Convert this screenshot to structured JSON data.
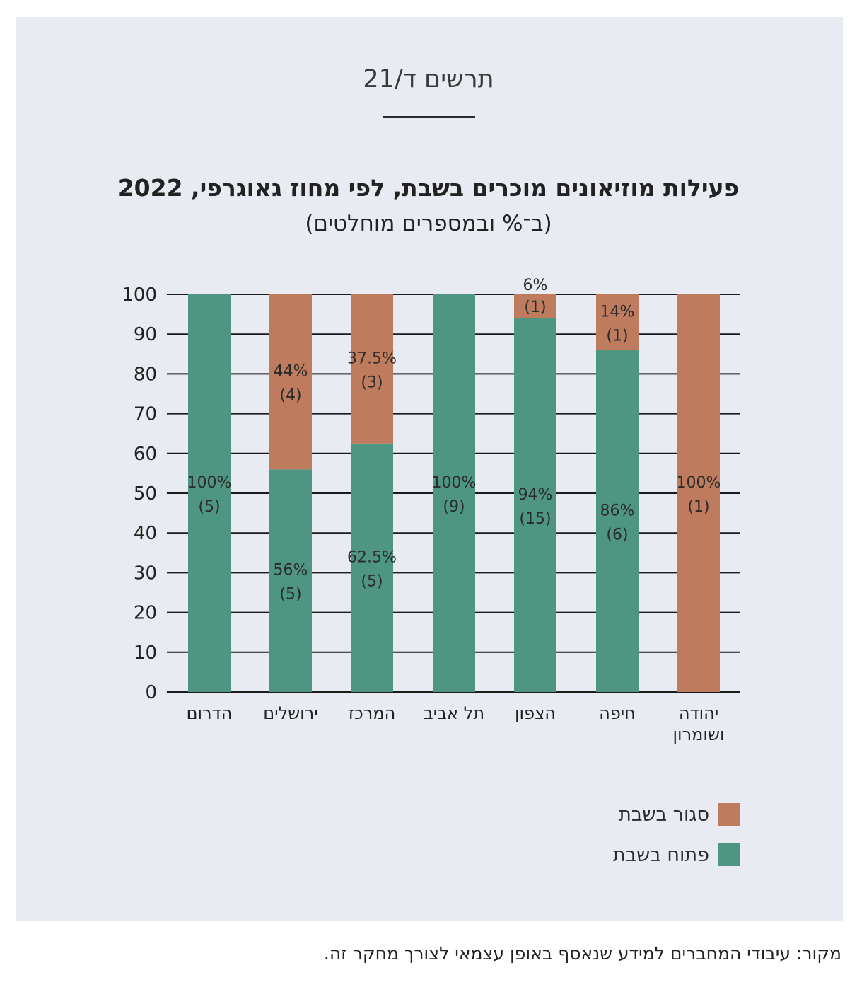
{
  "figure_number": "תרשים ד/21",
  "title": "פעילות מוזיאונים מוכרים בשבת, לפי מחוז גאוגרפי, 2022",
  "subtitle": "(ב־% ובמספרים מוחלטים)",
  "source": "מקור: עיבודי המחברים למידע שנאסף באופן עצמאי לצורך מחקר זה.",
  "colors": {
    "open": "#4e9582",
    "closed": "#bf7b5e",
    "panel_bg": "#e8ebf1",
    "grid": "#1a1a1a"
  },
  "legend": [
    {
      "key": "closed",
      "label": "סגור בשבת"
    },
    {
      "key": "open",
      "label": "פתוח בשבת"
    }
  ],
  "chart_data": {
    "type": "bar",
    "stacked": true,
    "ylim": [
      0,
      100
    ],
    "yticks": [
      0,
      10,
      20,
      30,
      40,
      50,
      60,
      70,
      80,
      90,
      100
    ],
    "grid": true,
    "legend_position": "bottom-right",
    "categories": [
      [
        "הדרום"
      ],
      [
        "ירושלים"
      ],
      [
        "המרכז"
      ],
      [
        "תל אביב"
      ],
      [
        "הצפון"
      ],
      [
        "חיפה"
      ],
      [
        "יהודה",
        "ושומרון"
      ]
    ],
    "series": [
      {
        "name": "פתוח בשבת",
        "key": "open",
        "values": [
          100,
          56,
          62.5,
          100,
          94,
          86,
          0
        ],
        "labels": [
          "100%",
          "56%",
          "62.5%",
          "100%",
          "94%",
          "86%",
          ""
        ],
        "counts": [
          "(5)",
          "(5)",
          "(5)",
          "(9)",
          "(15)",
          "(6)",
          ""
        ]
      },
      {
        "name": "סגור בשבת",
        "key": "closed",
        "values": [
          0,
          44,
          37.5,
          0,
          6,
          14,
          100
        ],
        "labels": [
          "",
          "44%",
          "37.5%",
          "",
          "6%",
          "14%",
          "100%"
        ],
        "counts": [
          "",
          "(4)",
          "(3)",
          "",
          "(1)",
          "(1)",
          "(1)"
        ]
      }
    ]
  }
}
